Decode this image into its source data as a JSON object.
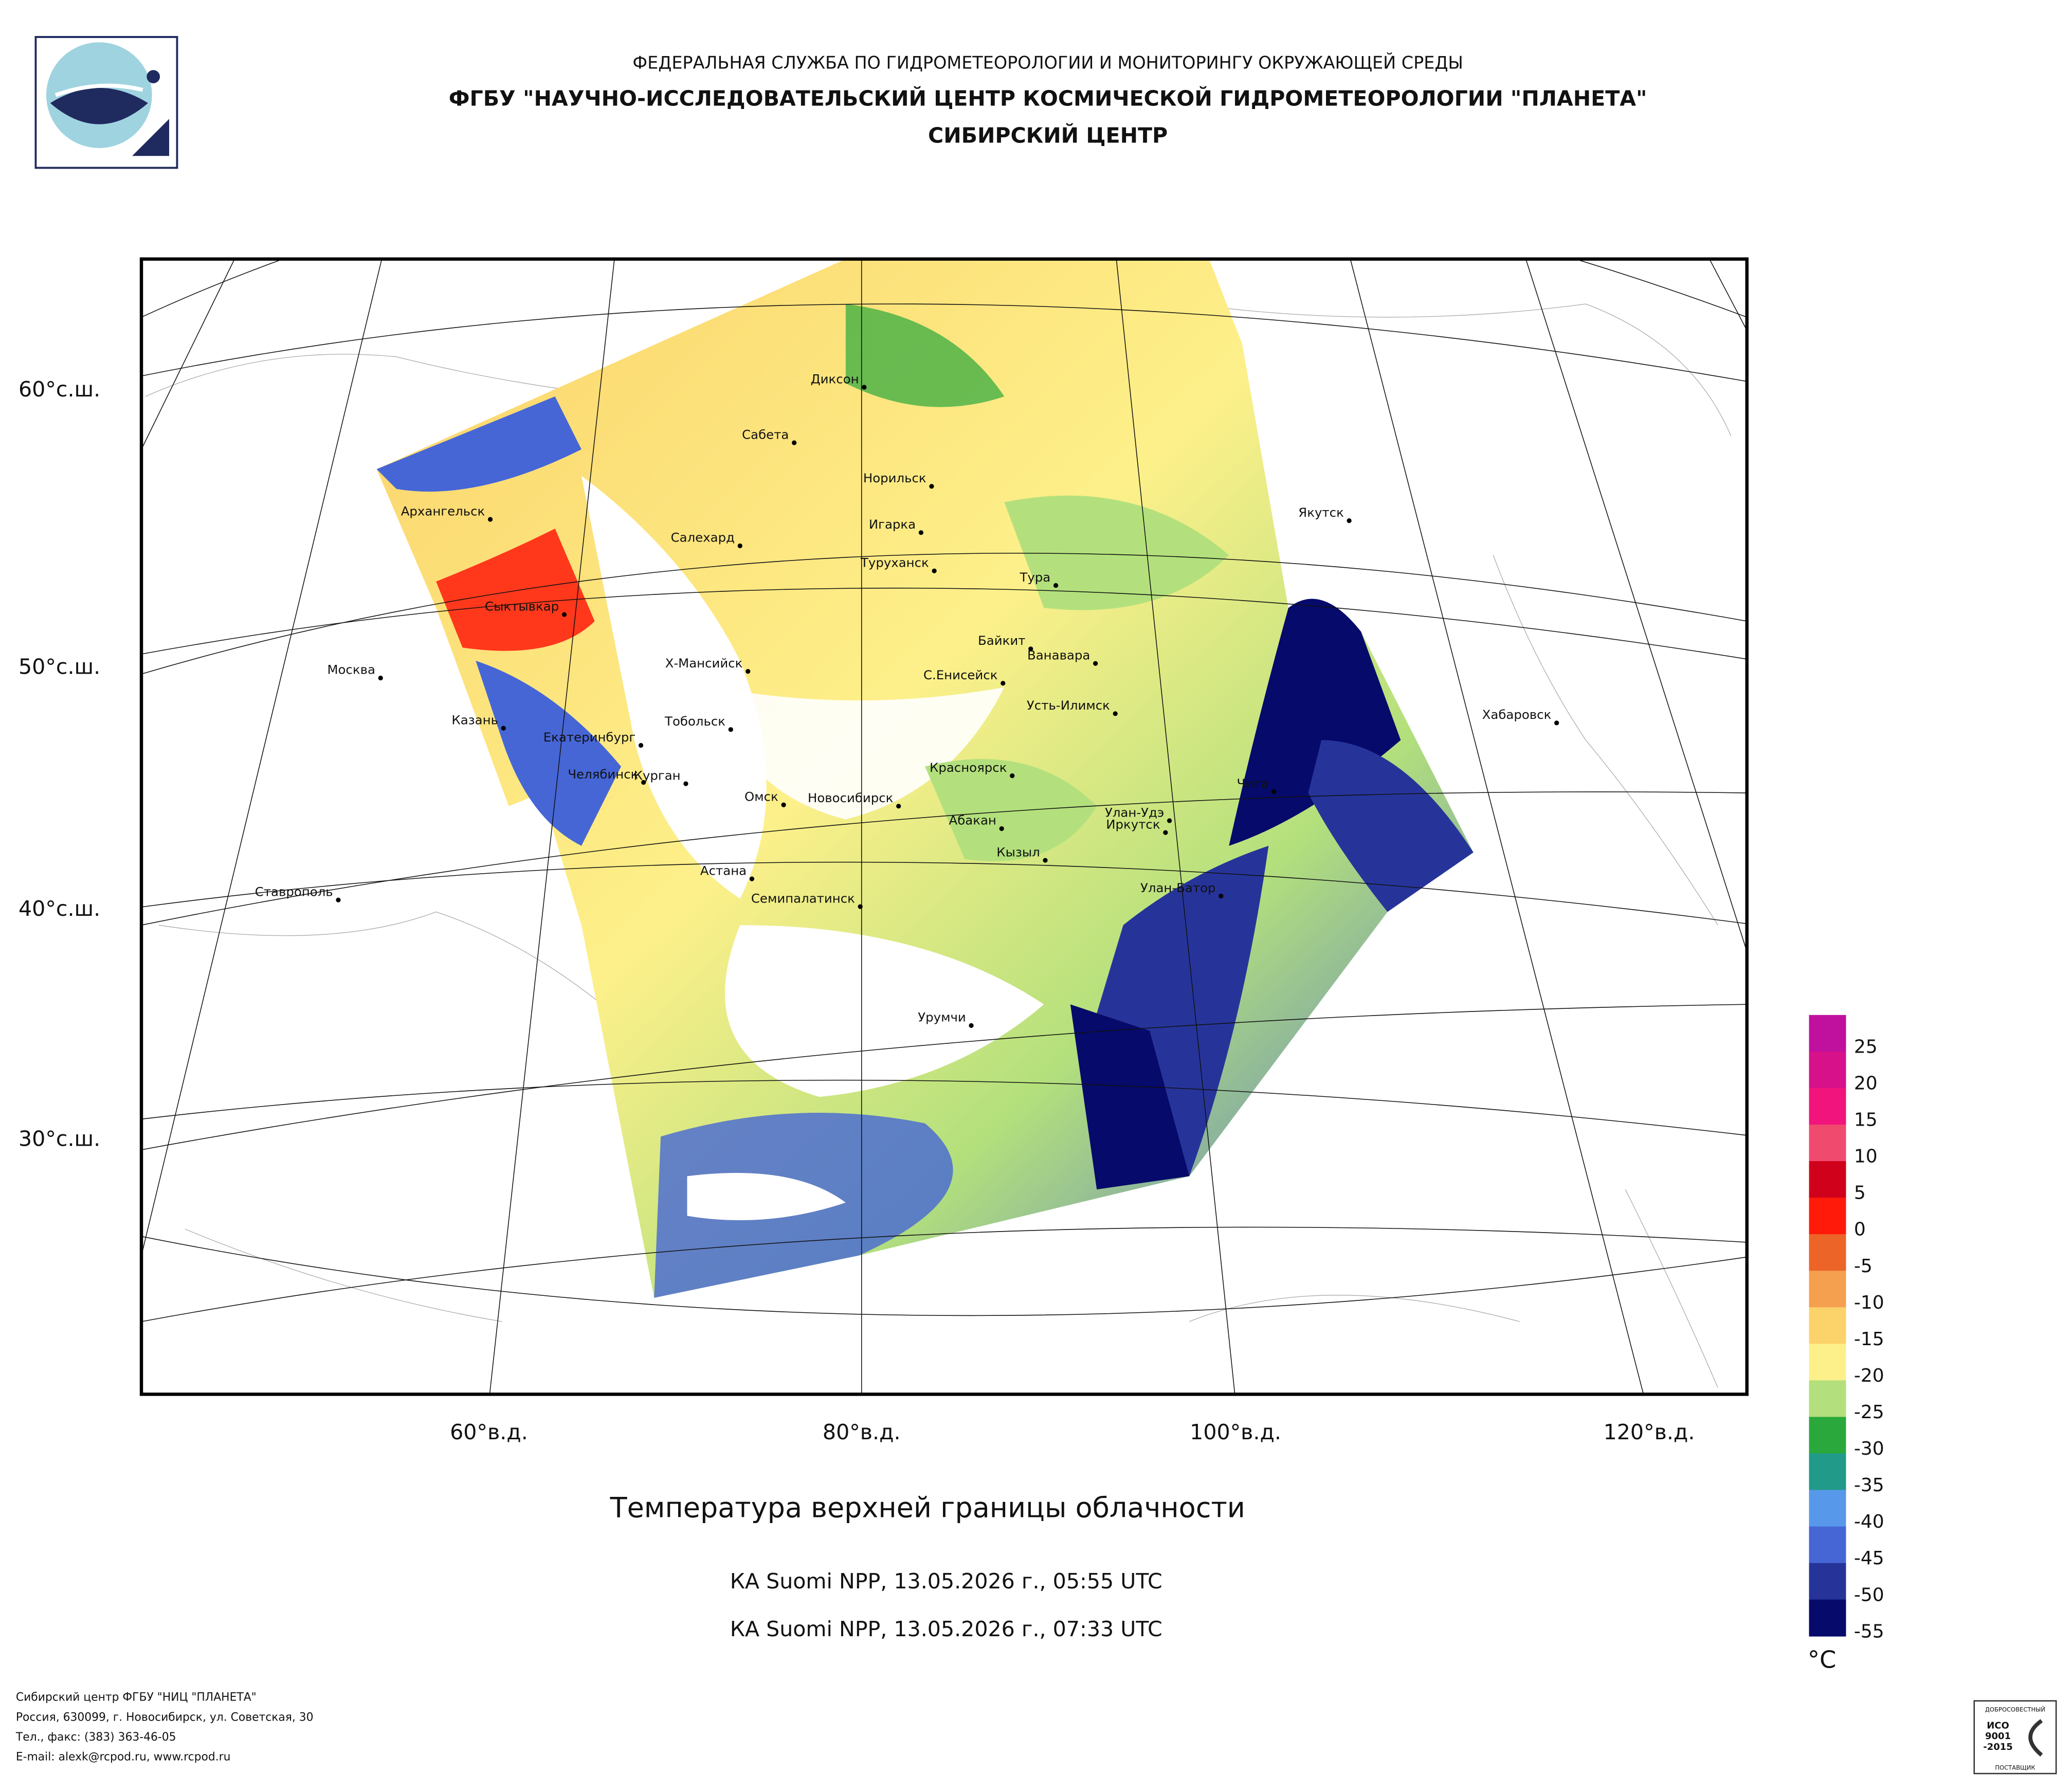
{
  "header": {
    "line1": "ФЕДЕРАЛЬНАЯ СЛУЖБА ПО ГИДРОМЕТЕОРОЛОГИИ И МОНИТОРИНГУ ОКРУЖАЮЩЕЙ СРЕДЫ",
    "line2": "ФГБУ \"НАУЧНО-ИССЛЕДОВАТЕЛЬСКИЙ ЦЕНТР КОСМИЧЕСКОЙ ГИДРОМЕТЕОРОЛОГИИ \"ПЛАНЕТА\"",
    "line3": "СИБИРСКИЙ ЦЕНТР"
  },
  "map": {
    "lat_labels": [
      "60°с.ш.",
      "50°с.ш.",
      "40°с.ш.",
      "30°с.ш."
    ],
    "lon_labels": [
      "60°в.д.",
      "80°в.д.",
      "100°в.д.",
      "120°в.д."
    ],
    "cities": [
      "Диксон",
      "Сабета",
      "Норильск",
      "Игарка",
      "Туруханск",
      "Тура",
      "Архангельск",
      "Салехард",
      "Якутск",
      "Сыктывкар",
      "Байкит",
      "Ванавара",
      "С.Енисейск",
      "Х-Мансийск",
      "Москва",
      "Усть-Илимск",
      "Хабаровск",
      "Казань",
      "Тобольск",
      "Екатеринбург",
      "Красноярск",
      "Чита",
      "Челябинск",
      "Курган",
      "Омск",
      "Новосибирск",
      "Улан-Удэ",
      "Абакан",
      "Иркутск",
      "Кызыл",
      "Астана",
      "Семипалатинск",
      "Улан-Батор",
      "Ставрополь",
      "Урумчи"
    ]
  },
  "title": "Температура верхней границы облачности",
  "subtitles": [
    "КА Suomi NPP, 13.05.2026 г., 05:55 UTC",
    "КА Suomi NPP, 13.05.2026 г., 07:33 UTC"
  ],
  "legend": {
    "ticks": [
      25,
      20,
      15,
      10,
      5,
      0,
      -5,
      -10,
      -15,
      -20,
      -25,
      -30,
      -35,
      -40,
      -45,
      -50,
      -55
    ],
    "unit": "°C",
    "colors": [
      "#c0109e",
      "#d6118a",
      "#f0147c",
      "#f04a6e",
      "#d0021b",
      "#ff1a0a",
      "#ec6428",
      "#f4a04e",
      "#fcd26a",
      "#fdf08a",
      "#b3e07c",
      "#2aa83c",
      "#229a8a",
      "#5898ea",
      "#4666d6",
      "#26349a",
      "#060a6a"
    ]
  },
  "footer": [
    "Сибирский центр ФГБУ \"НИЦ \"ПЛАНЕТА\"",
    "Россия, 630099, г. Новосибирск, ул. Советская, 30",
    "Тел., факс: (383) 363-46-05",
    "E-mail: alexk@rcpod.ru, www.rcpod.ru"
  ],
  "badge": {
    "top": "ДОБРОСОВЕСТНЫЙ",
    "lines": [
      "ИСО",
      "9001",
      "-2015"
    ],
    "bottom": "ПОСТАВЩИК"
  }
}
